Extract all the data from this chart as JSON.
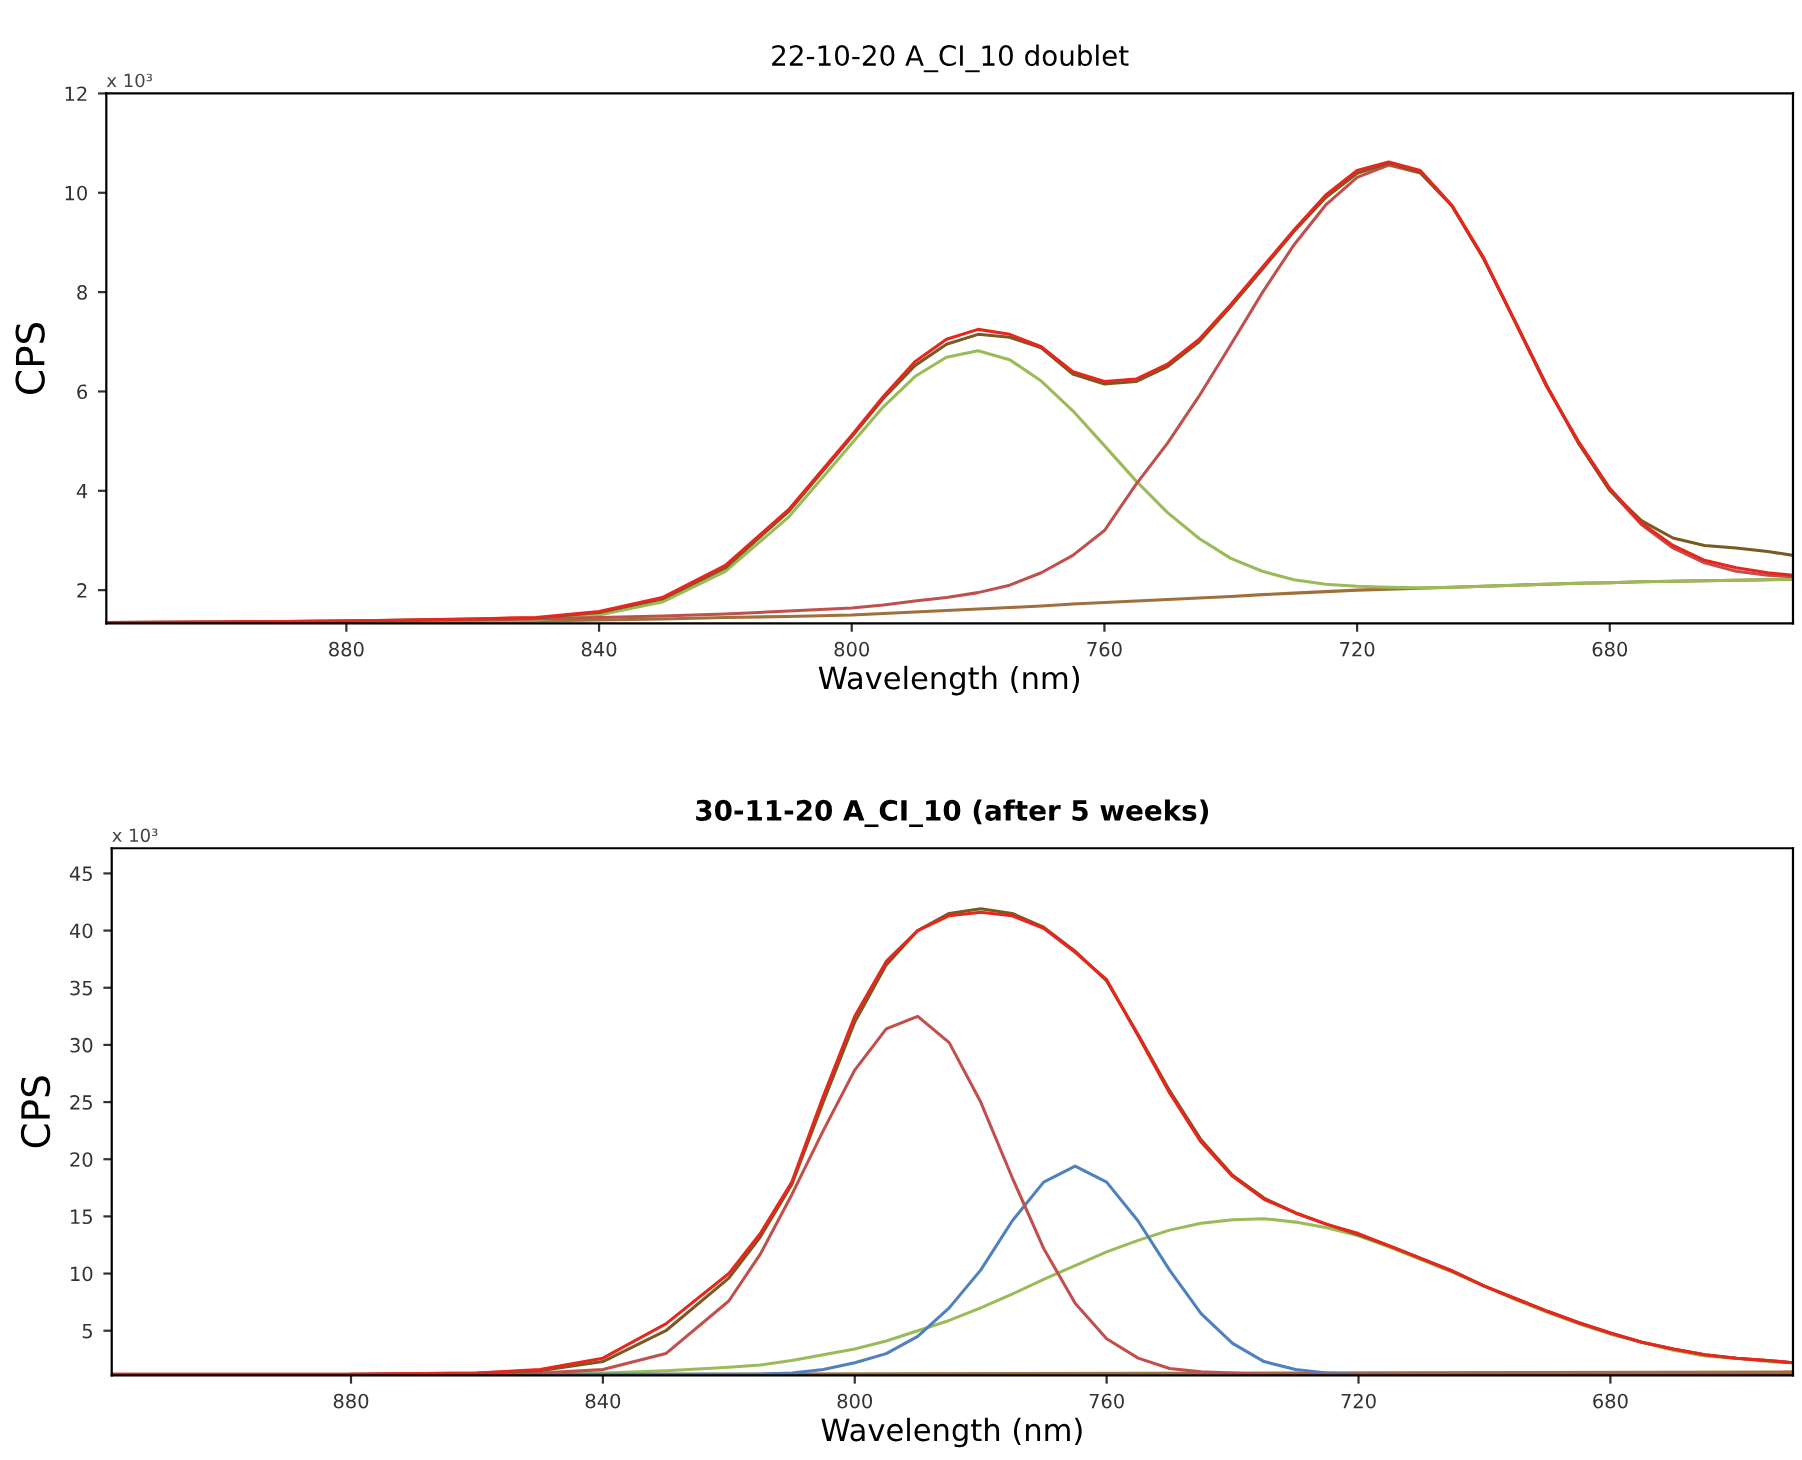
{
  "chart_data": [
    {
      "type": "line",
      "title": "22-10-20 A_CI_10 doublet",
      "xlabel": "Wavelength (nm)",
      "ylabel": "CPS",
      "annotations": [
        "x 10³"
      ],
      "x": [
        918,
        900,
        880,
        860,
        850,
        840,
        830,
        820,
        810,
        800,
        795,
        790,
        785,
        780,
        775,
        770,
        765,
        760,
        755,
        750,
        745,
        740,
        735,
        730,
        725,
        720,
        715,
        710,
        705,
        700,
        695,
        690,
        685,
        680,
        675,
        670,
        665,
        660,
        655,
        651
      ],
      "xlim": [
        918,
        651
      ],
      "xticks": [
        880,
        840,
        800,
        760,
        720,
        680
      ],
      "ylim": [
        1.33,
        12
      ],
      "yticks": [
        2,
        4,
        6,
        8,
        10,
        12
      ],
      "grid": false,
      "legend": false,
      "marker": "none",
      "line_style": "solid",
      "series": [
        {
          "color": "#a0703c",
          "values": [
            1.35,
            1.35,
            1.36,
            1.37,
            1.38,
            1.4,
            1.42,
            1.45,
            1.47,
            1.5,
            1.53,
            1.56,
            1.59,
            1.62,
            1.65,
            1.68,
            1.72,
            1.75,
            1.78,
            1.81,
            1.84,
            1.87,
            1.91,
            1.94,
            1.97,
            2.0,
            2.02,
            2.04,
            2.06,
            2.08,
            2.1,
            2.12,
            2.14,
            2.15,
            2.17,
            2.18,
            2.19,
            2.2,
            2.21,
            2.22
          ]
        },
        {
          "color": "#9bbb59",
          "values": [
            null,
            null,
            1.36,
            1.39,
            1.4,
            1.5,
            1.76,
            2.38,
            3.47,
            4.95,
            5.69,
            6.3,
            6.69,
            6.82,
            6.64,
            6.21,
            5.61,
            4.91,
            4.2,
            3.56,
            3.04,
            2.64,
            2.38,
            2.21,
            2.12,
            2.08,
            2.06,
            2.05,
            2.06,
            2.08,
            2.1,
            2.12,
            2.14,
            2.15,
            2.17,
            2.18,
            2.19,
            2.2,
            2.21,
            2.22
          ]
        },
        {
          "color": "#c0504d",
          "values": [
            1.35,
            1.36,
            1.38,
            1.4,
            1.42,
            1.45,
            1.48,
            1.52,
            1.58,
            1.64,
            1.7,
            1.78,
            1.85,
            1.95,
            2.1,
            2.35,
            2.7,
            3.2,
            4.13,
            4.96,
            5.91,
            6.94,
            7.99,
            8.95,
            9.75,
            10.31,
            10.56,
            10.4,
            9.74,
            8.68,
            7.41,
            6.12,
            4.97,
            4.01,
            3.32,
            2.85,
            2.55,
            2.38,
            2.3,
            2.27
          ]
        },
        {
          "color": "#7b5a22",
          "values": [
            1.35,
            1.36,
            1.38,
            1.42,
            1.44,
            1.55,
            1.82,
            2.45,
            3.58,
            5.09,
            5.86,
            6.52,
            6.95,
            7.15,
            7.09,
            6.88,
            6.35,
            6.15,
            6.2,
            6.5,
            7.0,
            7.71,
            8.46,
            9.22,
            9.9,
            10.39,
            10.6,
            10.41,
            9.74,
            8.68,
            7.41,
            6.12,
            4.97,
            4.01,
            3.4,
            3.05,
            2.9,
            2.85,
            2.78,
            2.7
          ]
        },
        {
          "color": "#e8261e",
          "values": [
            1.35,
            1.36,
            1.38,
            1.42,
            1.45,
            1.57,
            1.85,
            2.5,
            3.62,
            5.12,
            5.9,
            6.6,
            7.05,
            7.25,
            7.15,
            6.9,
            6.4,
            6.2,
            6.25,
            6.55,
            7.05,
            7.75,
            8.5,
            9.25,
            9.95,
            10.45,
            10.62,
            10.45,
            9.75,
            8.7,
            7.4,
            6.1,
            5.0,
            4.05,
            3.35,
            2.9,
            2.6,
            2.45,
            2.35,
            2.3
          ]
        }
      ]
    },
    {
      "type": "line",
      "title": "30-11-20 A_CI_10 (after 5 weeks)",
      "xlabel": "Wavelength (nm)",
      "ylabel": "CPS",
      "annotations": [
        "x 10³"
      ],
      "x": [
        918,
        900,
        880,
        860,
        850,
        840,
        830,
        820,
        815,
        810,
        805,
        800,
        795,
        790,
        785,
        780,
        775,
        770,
        765,
        760,
        755,
        750,
        745,
        740,
        735,
        730,
        725,
        720,
        715,
        710,
        705,
        700,
        695,
        690,
        685,
        680,
        675,
        670,
        665,
        660,
        655,
        651
      ],
      "xlim": [
        918,
        651
      ],
      "xticks": [
        880,
        840,
        800,
        760,
        720,
        680
      ],
      "ylim": [
        1.1,
        47.2
      ],
      "yticks": [
        5,
        10,
        15,
        20,
        25,
        30,
        35,
        40,
        45
      ],
      "grid": false,
      "legend": false,
      "marker": "none",
      "line_style": "solid",
      "series": [
        {
          "color": "#a0703c",
          "x": [
            918,
            651
          ],
          "values": [
            1.1,
            1.4
          ]
        },
        {
          "color": "#9bbb59",
          "values": [
            null,
            null,
            null,
            1.2,
            1.2,
            1.3,
            1.5,
            1.8,
            2.0,
            2.4,
            2.9,
            3.4,
            4.1,
            5.0,
            5.9,
            7.0,
            8.2,
            9.5,
            10.7,
            11.9,
            12.9,
            13.8,
            14.4,
            14.7,
            14.8,
            14.5,
            14.0,
            13.3,
            12.3,
            11.2,
            10.1,
            8.9,
            7.7,
            6.6,
            5.6,
            4.7,
            4.0,
            3.3,
            2.8,
            2.6,
            2.3,
            2.2
          ]
        },
        {
          "color": "#4f81bd",
          "values": [
            null,
            null,
            null,
            1.2,
            1.2,
            1.2,
            1.2,
            1.2,
            1.2,
            1.3,
            1.6,
            2.2,
            3.0,
            4.5,
            7.0,
            10.3,
            14.6,
            18.0,
            19.4,
            18.0,
            14.6,
            10.3,
            6.5,
            3.9,
            2.3,
            1.6,
            1.3,
            1.2,
            1.2,
            null,
            null,
            null,
            null,
            null,
            null,
            null,
            null,
            null,
            null,
            null,
            null,
            null
          ]
        },
        {
          "color": "#c0504d",
          "values": [
            1.2,
            1.2,
            1.2,
            1.2,
            1.3,
            1.6,
            3.0,
            7.6,
            11.7,
            16.9,
            22.5,
            27.8,
            31.4,
            32.5,
            30.2,
            25.0,
            18.4,
            12.2,
            7.4,
            4.3,
            2.6,
            1.7,
            1.4,
            1.3,
            1.2,
            1.2,
            1.2,
            1.2,
            1.2,
            1.2,
            1.2,
            1.2,
            1.2,
            1.2,
            1.2,
            1.2,
            1.2,
            1.2,
            1.2,
            1.2,
            1.2,
            1.2
          ]
        },
        {
          "color": "#7b5a22",
          "values": [
            null,
            null,
            1.2,
            1.3,
            1.5,
            2.3,
            5.0,
            9.6,
            13.2,
            17.8,
            25.0,
            32.0,
            37.0,
            40.0,
            41.5,
            41.9,
            41.5,
            40.3,
            38.2,
            35.6,
            30.9,
            26.0,
            21.7,
            18.6,
            16.6,
            15.3,
            14.3,
            13.4,
            12.4,
            11.3,
            10.2,
            8.9,
            7.8,
            6.7,
            5.7,
            4.8,
            4.0,
            3.4,
            2.9,
            2.6,
            2.4,
            2.2
          ]
        },
        {
          "color": "#e8261e",
          "values": [
            1.2,
            1.2,
            1.2,
            1.3,
            1.6,
            2.6,
            5.6,
            10.0,
            13.5,
            18.0,
            25.5,
            32.5,
            37.3,
            40.0,
            41.3,
            41.6,
            41.3,
            40.2,
            38.1,
            35.7,
            30.8,
            25.8,
            21.5,
            18.5,
            16.5,
            15.3,
            14.3,
            13.5,
            12.4,
            11.3,
            10.2,
            8.9,
            7.8,
            6.7,
            5.7,
            4.8,
            4.0,
            3.4,
            2.9,
            2.6,
            2.4,
            2.2
          ]
        }
      ]
    }
  ]
}
